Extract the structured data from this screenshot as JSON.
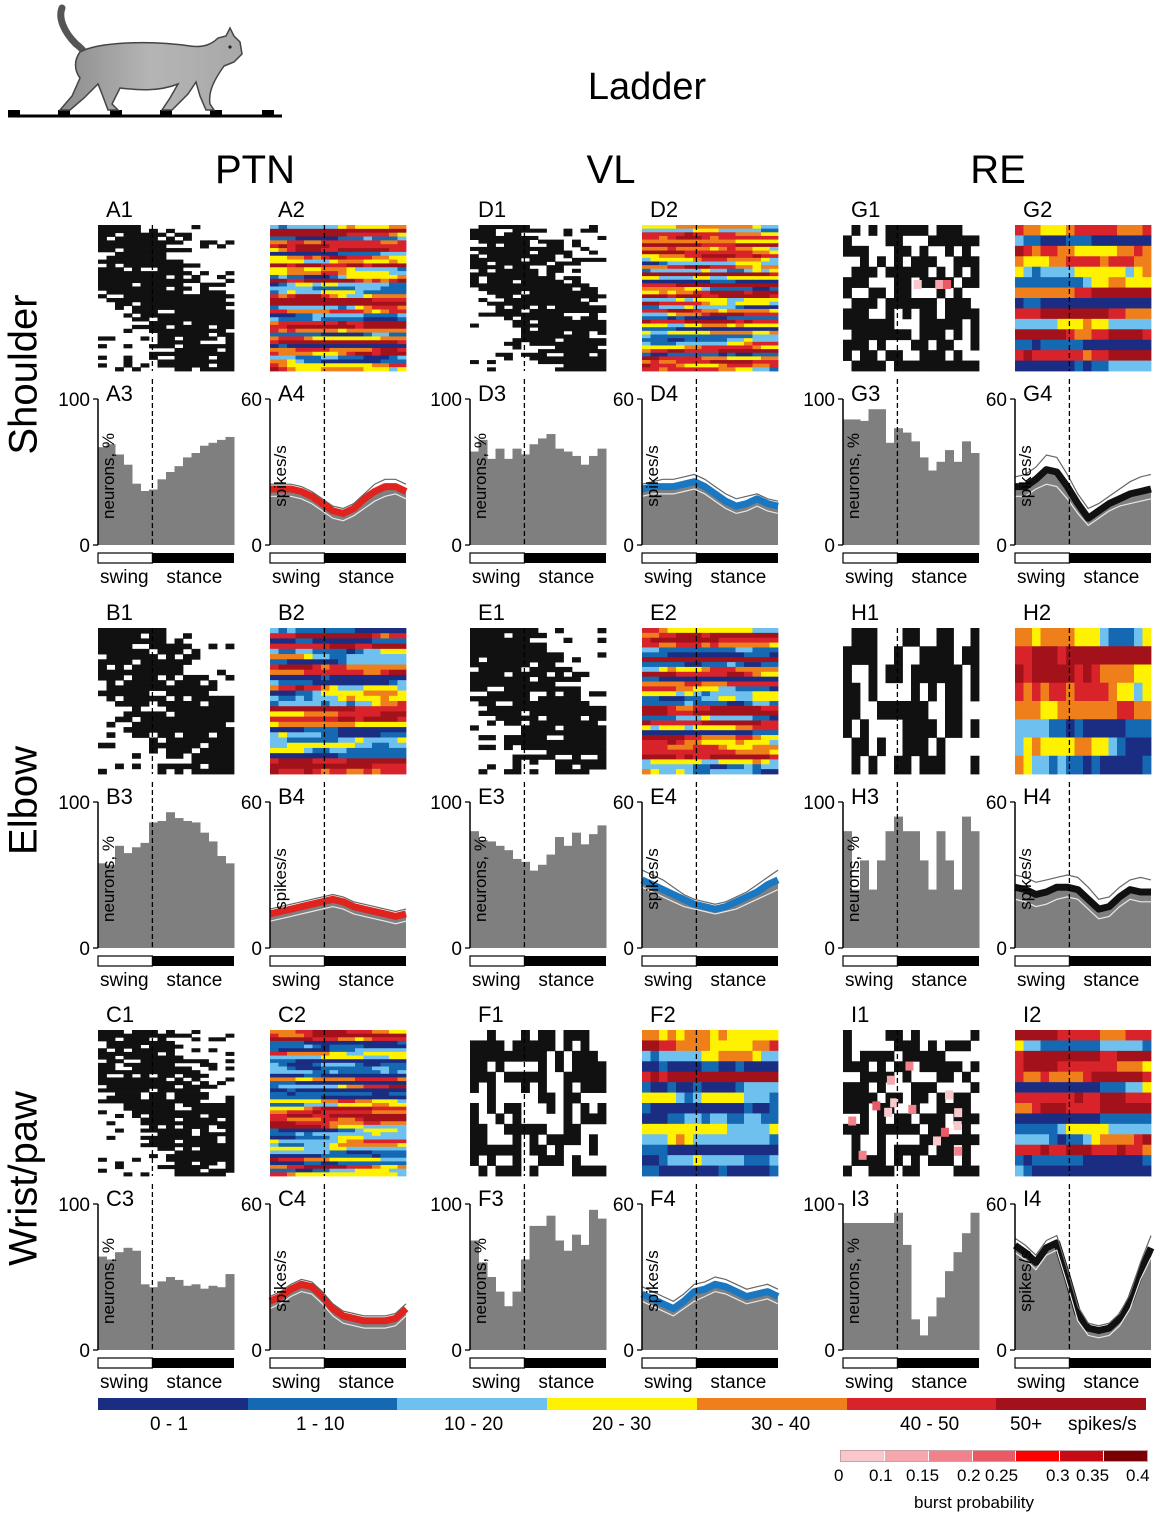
{
  "title": "Ladder",
  "columns": [
    "PTN",
    "VL",
    "RE"
  ],
  "rows": [
    "Shoulder",
    "Elbow",
    "Wrist/paw"
  ],
  "phase_labels": {
    "swing": "swing",
    "stance": "stance"
  },
  "colors": {
    "gray": "#7f7f7f",
    "ptn_band": "#e0231c",
    "vl_band": "#1a78c2",
    "re_band": "#111111",
    "scale": [
      "#1b2d82",
      "#1569b3",
      "#6ec1ee",
      "#fff200",
      "#ef7f1a",
      "#d9232a",
      "#a3121a"
    ],
    "burst": [
      "#f8c8cc",
      "#f6a6ad",
      "#f1828b",
      "#ea5a66",
      "#ff0000",
      "#c70b14",
      "#7a0006"
    ]
  },
  "colorbar": {
    "labels": [
      "0 - 1",
      "1 - 10",
      "10 - 20",
      "20 - 30",
      "30 - 40",
      "40 - 50",
      "50+"
    ],
    "unit": "spikes/s"
  },
  "burst_scale": {
    "labels": [
      "0",
      "0.1",
      "0.15",
      "0.2",
      "0.25",
      "0.3",
      "0.35",
      "0.4"
    ],
    "title": "burst probability"
  },
  "chart_data": [
    {
      "panel": "A1",
      "type": "heatmap",
      "content": "raster",
      "rows": 38
    },
    {
      "panel": "A2",
      "type": "heatmap",
      "content": "rate",
      "rows": 38
    },
    {
      "panel": "A3",
      "type": "bar",
      "title": "A3",
      "ylabel": "neurons, %",
      "ylim": [
        0,
        100
      ],
      "values": [
        67,
        69,
        62,
        55,
        42,
        37,
        38,
        45,
        50,
        54,
        60,
        63,
        68,
        70,
        72,
        74
      ]
    },
    {
      "panel": "A4",
      "type": "line",
      "title": "A4",
      "ylabel": "spikes/s",
      "ylim": [
        0,
        60
      ],
      "mean": [
        23,
        23,
        23,
        22,
        20,
        17,
        14,
        13,
        15,
        19,
        22,
        24,
        24,
        22
      ],
      "upper": [
        25,
        25,
        25,
        24,
        22,
        19,
        16,
        15,
        17,
        21,
        25,
        27,
        27,
        25
      ],
      "lower": [
        20,
        20,
        20,
        19,
        17,
        14,
        11,
        10,
        12,
        15,
        18,
        20,
        21,
        19
      ]
    },
    {
      "panel": "B1",
      "type": "heatmap",
      "content": "raster",
      "rows": 28
    },
    {
      "panel": "B2",
      "type": "heatmap",
      "content": "rate",
      "rows": 28
    },
    {
      "panel": "B3",
      "type": "bar",
      "title": "B3",
      "ylabel": "neurons, %",
      "ylim": [
        0,
        100
      ],
      "values": [
        58,
        57,
        70,
        65,
        69,
        72,
        86,
        87,
        93,
        89,
        87,
        86,
        79,
        73,
        63,
        58
      ]
    },
    {
      "panel": "B4",
      "type": "line",
      "title": "B4",
      "ylabel": "spikes/s",
      "ylim": [
        0,
        60
      ],
      "mean": [
        14,
        15,
        16,
        17,
        18,
        19,
        20,
        19,
        17,
        16,
        15,
        14,
        13,
        14
      ],
      "upper": [
        16,
        17,
        18,
        19,
        20,
        21,
        22,
        21,
        19,
        18,
        17,
        16,
        15,
        16
      ],
      "lower": [
        11,
        12,
        13,
        14,
        15,
        16,
        17,
        16,
        14,
        13,
        12,
        11,
        10,
        11
      ]
    },
    {
      "panel": "C1",
      "type": "heatmap",
      "content": "raster",
      "rows": 40
    },
    {
      "panel": "C2",
      "type": "heatmap",
      "content": "rate",
      "rows": 40
    },
    {
      "panel": "C3",
      "type": "bar",
      "title": "C3",
      "ylabel": "neurons, %",
      "ylim": [
        0,
        100
      ],
      "values": [
        64,
        62,
        67,
        70,
        68,
        45,
        43,
        47,
        50,
        48,
        44,
        45,
        42,
        44,
        43,
        52
      ]
    },
    {
      "panel": "C4",
      "type": "line",
      "title": "C4",
      "ylabel": "spikes/s",
      "ylim": [
        0,
        60
      ],
      "mean": [
        20,
        22,
        25,
        27,
        26,
        22,
        17,
        14,
        13,
        12,
        12,
        12,
        13,
        17
      ],
      "upper": [
        22,
        24,
        27,
        29,
        28,
        24,
        19,
        16,
        15,
        14,
        14,
        14,
        15,
        19
      ],
      "lower": [
        17,
        19,
        22,
        24,
        23,
        19,
        14,
        11,
        10,
        9,
        9,
        9,
        10,
        14
      ]
    },
    {
      "panel": "D1",
      "type": "heatmap",
      "content": "raster",
      "rows": 40
    },
    {
      "panel": "D2",
      "type": "heatmap",
      "content": "rate",
      "rows": 40
    },
    {
      "panel": "D3",
      "type": "bar",
      "title": "D3",
      "ylabel": "neurons, %",
      "ylim": [
        0,
        100
      ],
      "values": [
        64,
        72,
        59,
        66,
        59,
        66,
        62,
        69,
        73,
        76,
        66,
        64,
        61,
        55,
        61,
        66
      ]
    },
    {
      "panel": "D4",
      "type": "line",
      "title": "D4",
      "ylabel": "spikes/s",
      "ylim": [
        0,
        60
      ],
      "mean": [
        23,
        24,
        24,
        24,
        25,
        26,
        24,
        21,
        18,
        16,
        17,
        19,
        17,
        16
      ],
      "upper": [
        25,
        26,
        27,
        27,
        28,
        29,
        27,
        24,
        21,
        19,
        20,
        21,
        19,
        18
      ],
      "lower": [
        20,
        21,
        21,
        21,
        22,
        23,
        21,
        18,
        15,
        13,
        14,
        16,
        14,
        13
      ]
    },
    {
      "panel": "E1",
      "type": "heatmap",
      "content": "raster",
      "rows": 30
    },
    {
      "panel": "E2",
      "type": "heatmap",
      "content": "rate",
      "rows": 30
    },
    {
      "panel": "E3",
      "type": "bar",
      "title": "E3",
      "ylabel": "neurons, %",
      "ylim": [
        0,
        100
      ],
      "values": [
        80,
        74,
        73,
        70,
        67,
        61,
        59,
        53,
        57,
        64,
        76,
        70,
        79,
        71,
        78,
        84
      ]
    },
    {
      "panel": "E4",
      "type": "line",
      "title": "E4",
      "ylabel": "spikes/s",
      "ylim": [
        0,
        60
      ],
      "mean": [
        28,
        26,
        24,
        22,
        20,
        18,
        17,
        16,
        17,
        19,
        21,
        23,
        26,
        28
      ],
      "upper": [
        32,
        30,
        28,
        25,
        22,
        20,
        19,
        18,
        19,
        21,
        23,
        26,
        29,
        32
      ],
      "lower": [
        25,
        23,
        21,
        19,
        17,
        16,
        15,
        14,
        15,
        16,
        18,
        20,
        22,
        24
      ]
    },
    {
      "panel": "F1",
      "type": "heatmap",
      "content": "raster",
      "rows": 14
    },
    {
      "panel": "F2",
      "type": "heatmap",
      "content": "rate",
      "rows": 14
    },
    {
      "panel": "F3",
      "type": "bar",
      "title": "F3",
      "ylabel": "neurons, %",
      "ylim": [
        0,
        100
      ],
      "values": [
        75,
        60,
        50,
        40,
        30,
        40,
        62,
        85,
        85,
        92,
        75,
        68,
        79,
        72,
        96,
        90
      ]
    },
    {
      "panel": "F4",
      "type": "line",
      "title": "F4",
      "ylabel": "spikes/s",
      "ylim": [
        0,
        60
      ],
      "mean": [
        23,
        21,
        19,
        17,
        20,
        24,
        25,
        27,
        26,
        24,
        22,
        23,
        24,
        22
      ],
      "upper": [
        26,
        24,
        22,
        20,
        23,
        27,
        28,
        30,
        29,
        27,
        25,
        26,
        27,
        25
      ],
      "lower": [
        20,
        18,
        16,
        14,
        17,
        20,
        22,
        24,
        23,
        21,
        19,
        20,
        21,
        19
      ]
    },
    {
      "panel": "G1",
      "type": "heatmap",
      "content": "raster",
      "rows": 14
    },
    {
      "panel": "G2",
      "type": "heatmap",
      "content": "rate",
      "rows": 14
    },
    {
      "panel": "G3",
      "type": "bar",
      "title": "G3",
      "ylabel": "neurons, %",
      "ylim": [
        0,
        100
      ],
      "values": [
        86,
        86,
        85,
        93,
        93,
        70,
        80,
        77,
        71,
        60,
        51,
        57,
        65,
        57,
        71,
        63
      ]
    },
    {
      "panel": "G4",
      "type": "line",
      "title": "G4",
      "ylabel": "spikes/s",
      "ylim": [
        0,
        60
      ],
      "mean": [
        24,
        24,
        27,
        31,
        30,
        24,
        17,
        11,
        14,
        17,
        19,
        21,
        22,
        23
      ],
      "upper": [
        28,
        29,
        32,
        37,
        36,
        29,
        21,
        15,
        17,
        20,
        23,
        26,
        28,
        29
      ],
      "lower": [
        20,
        20,
        23,
        25,
        24,
        19,
        13,
        8,
        11,
        14,
        16,
        17,
        18,
        19
      ]
    },
    {
      "panel": "H1",
      "type": "heatmap",
      "content": "raster",
      "rows": 8
    },
    {
      "panel": "H2",
      "type": "heatmap",
      "content": "rate",
      "rows": 8
    },
    {
      "panel": "H3",
      "type": "bar",
      "title": "H3",
      "ylabel": "neurons, %",
      "ylim": [
        0,
        100
      ],
      "values": [
        80,
        40,
        60,
        40,
        60,
        80,
        90,
        80,
        80,
        60,
        40,
        80,
        60,
        40,
        90,
        80
      ]
    },
    {
      "panel": "H4",
      "type": "line",
      "title": "H4",
      "ylabel": "spikes/s",
      "ylim": [
        0,
        60
      ],
      "mean": [
        25,
        24,
        22,
        23,
        25,
        25,
        24,
        20,
        16,
        17,
        21,
        24,
        23,
        23
      ],
      "upper": [
        30,
        29,
        27,
        28,
        29,
        30,
        29,
        25,
        20,
        21,
        25,
        28,
        29,
        28
      ],
      "lower": [
        20,
        19,
        17,
        18,
        20,
        21,
        20,
        16,
        12,
        13,
        17,
        20,
        19,
        19
      ]
    },
    {
      "panel": "I1",
      "type": "heatmap",
      "content": "raster",
      "rows": 14
    },
    {
      "panel": "I2",
      "type": "heatmap",
      "content": "rate",
      "rows": 14
    },
    {
      "panel": "I3",
      "type": "bar",
      "title": "I3",
      "ylabel": "neurons, %",
      "ylim": [
        0,
        100
      ],
      "values": [
        87,
        87,
        87,
        87,
        87,
        87,
        94,
        72,
        21,
        10,
        23,
        36,
        54,
        67,
        80,
        94
      ]
    },
    {
      "panel": "I4",
      "type": "line",
      "title": "I4",
      "ylabel": "spikes/s",
      "ylim": [
        0,
        60
      ],
      "mean": [
        43,
        40,
        36,
        42,
        44,
        30,
        15,
        9,
        8,
        9,
        13,
        20,
        32,
        42
      ],
      "upper": [
        46,
        43,
        39,
        45,
        47,
        33,
        18,
        11,
        10,
        11,
        15,
        23,
        36,
        47
      ],
      "lower": [
        40,
        37,
        33,
        39,
        41,
        27,
        12,
        6,
        5,
        6,
        10,
        17,
        29,
        38
      ]
    }
  ]
}
